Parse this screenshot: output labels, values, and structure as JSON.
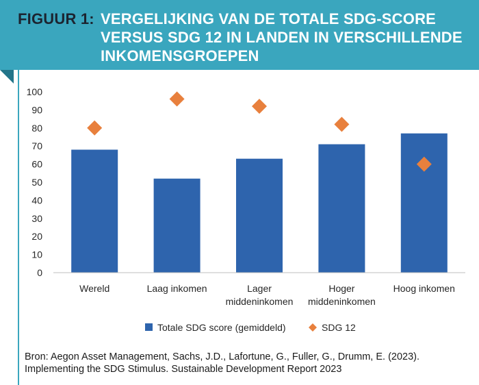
{
  "header": {
    "label": "FIGUUR 1:",
    "title": "VERGELIJKING VAN DE TOTALE SDG-SCORE VERSUS SDG 12 IN LANDEN IN VERSCHILLENDE INKOMENSGROEPEN",
    "background_color": "#3aa6be"
  },
  "chart_data": {
    "type": "bar",
    "categories": [
      [
        "Wereld"
      ],
      [
        "Laag inkomen"
      ],
      [
        "Lager",
        "middeninkomen"
      ],
      [
        "Hoger",
        "middeninkomen"
      ],
      [
        "Hoog inkomen"
      ]
    ],
    "series": [
      {
        "name": "Totale SDG score (gemiddeld)",
        "kind": "bar",
        "color": "#2e64ad",
        "values": [
          68,
          52,
          63,
          71,
          77
        ]
      },
      {
        "name": "SDG 12",
        "kind": "marker-diamond",
        "color": "#e8803d",
        "values": [
          80,
          96,
          92,
          82,
          60
        ]
      }
    ],
    "ylim": [
      0,
      100
    ],
    "yticks": [
      "0",
      "10",
      "20",
      "30",
      "40",
      "50",
      "60",
      "70",
      "80",
      "90",
      "100"
    ],
    "grid": false,
    "legend_position": "bottom"
  },
  "source": {
    "line1": "Bron: Aegon Asset Management, Sachs, J.D., Lafortune, G., Fuller, G., Drumm, E. (2023).",
    "line2": "Implementing the SDG Stimulus. Sustainable Development Report 2023"
  }
}
